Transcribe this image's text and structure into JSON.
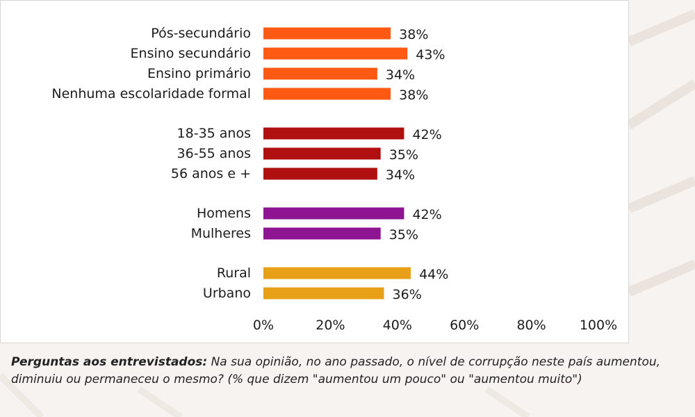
{
  "chart_data": {
    "type": "bar",
    "orientation": "horizontal",
    "groups": [
      {
        "color": "#ff5a14",
        "categories": [
          "Pós-secundário",
          "Ensino secundário",
          "Ensino primário",
          "Nenhuma escolaridade formal"
        ],
        "values": [
          38,
          43,
          34,
          38
        ]
      },
      {
        "color": "#b01010",
        "categories": [
          "18-35 anos",
          "36-55 anos",
          "56 anos e +"
        ],
        "values": [
          42,
          35,
          34
        ]
      },
      {
        "color": "#8e1592",
        "categories": [
          "Homens",
          "Mulheres"
        ],
        "values": [
          42,
          35
        ]
      },
      {
        "color": "#e8a019",
        "categories": [
          "Rural",
          "Urbano"
        ],
        "values": [
          44,
          36
        ]
      }
    ],
    "value_suffix": "%",
    "xlim": [
      0,
      100
    ],
    "xticks": [
      "0%",
      "20%",
      "40%",
      "60%",
      "80%",
      "100%"
    ],
    "grid": false,
    "legend": "none"
  },
  "footnote": {
    "label": "Perguntas aos entrevistados:",
    "text": " Na sua opinião, no ano passado, o nível de corrupção neste país aumentou, diminuiu ou permaneceu o mesmo? (% que dizem \"aumentou um pouco\" ou \"aumentou muito\")"
  }
}
